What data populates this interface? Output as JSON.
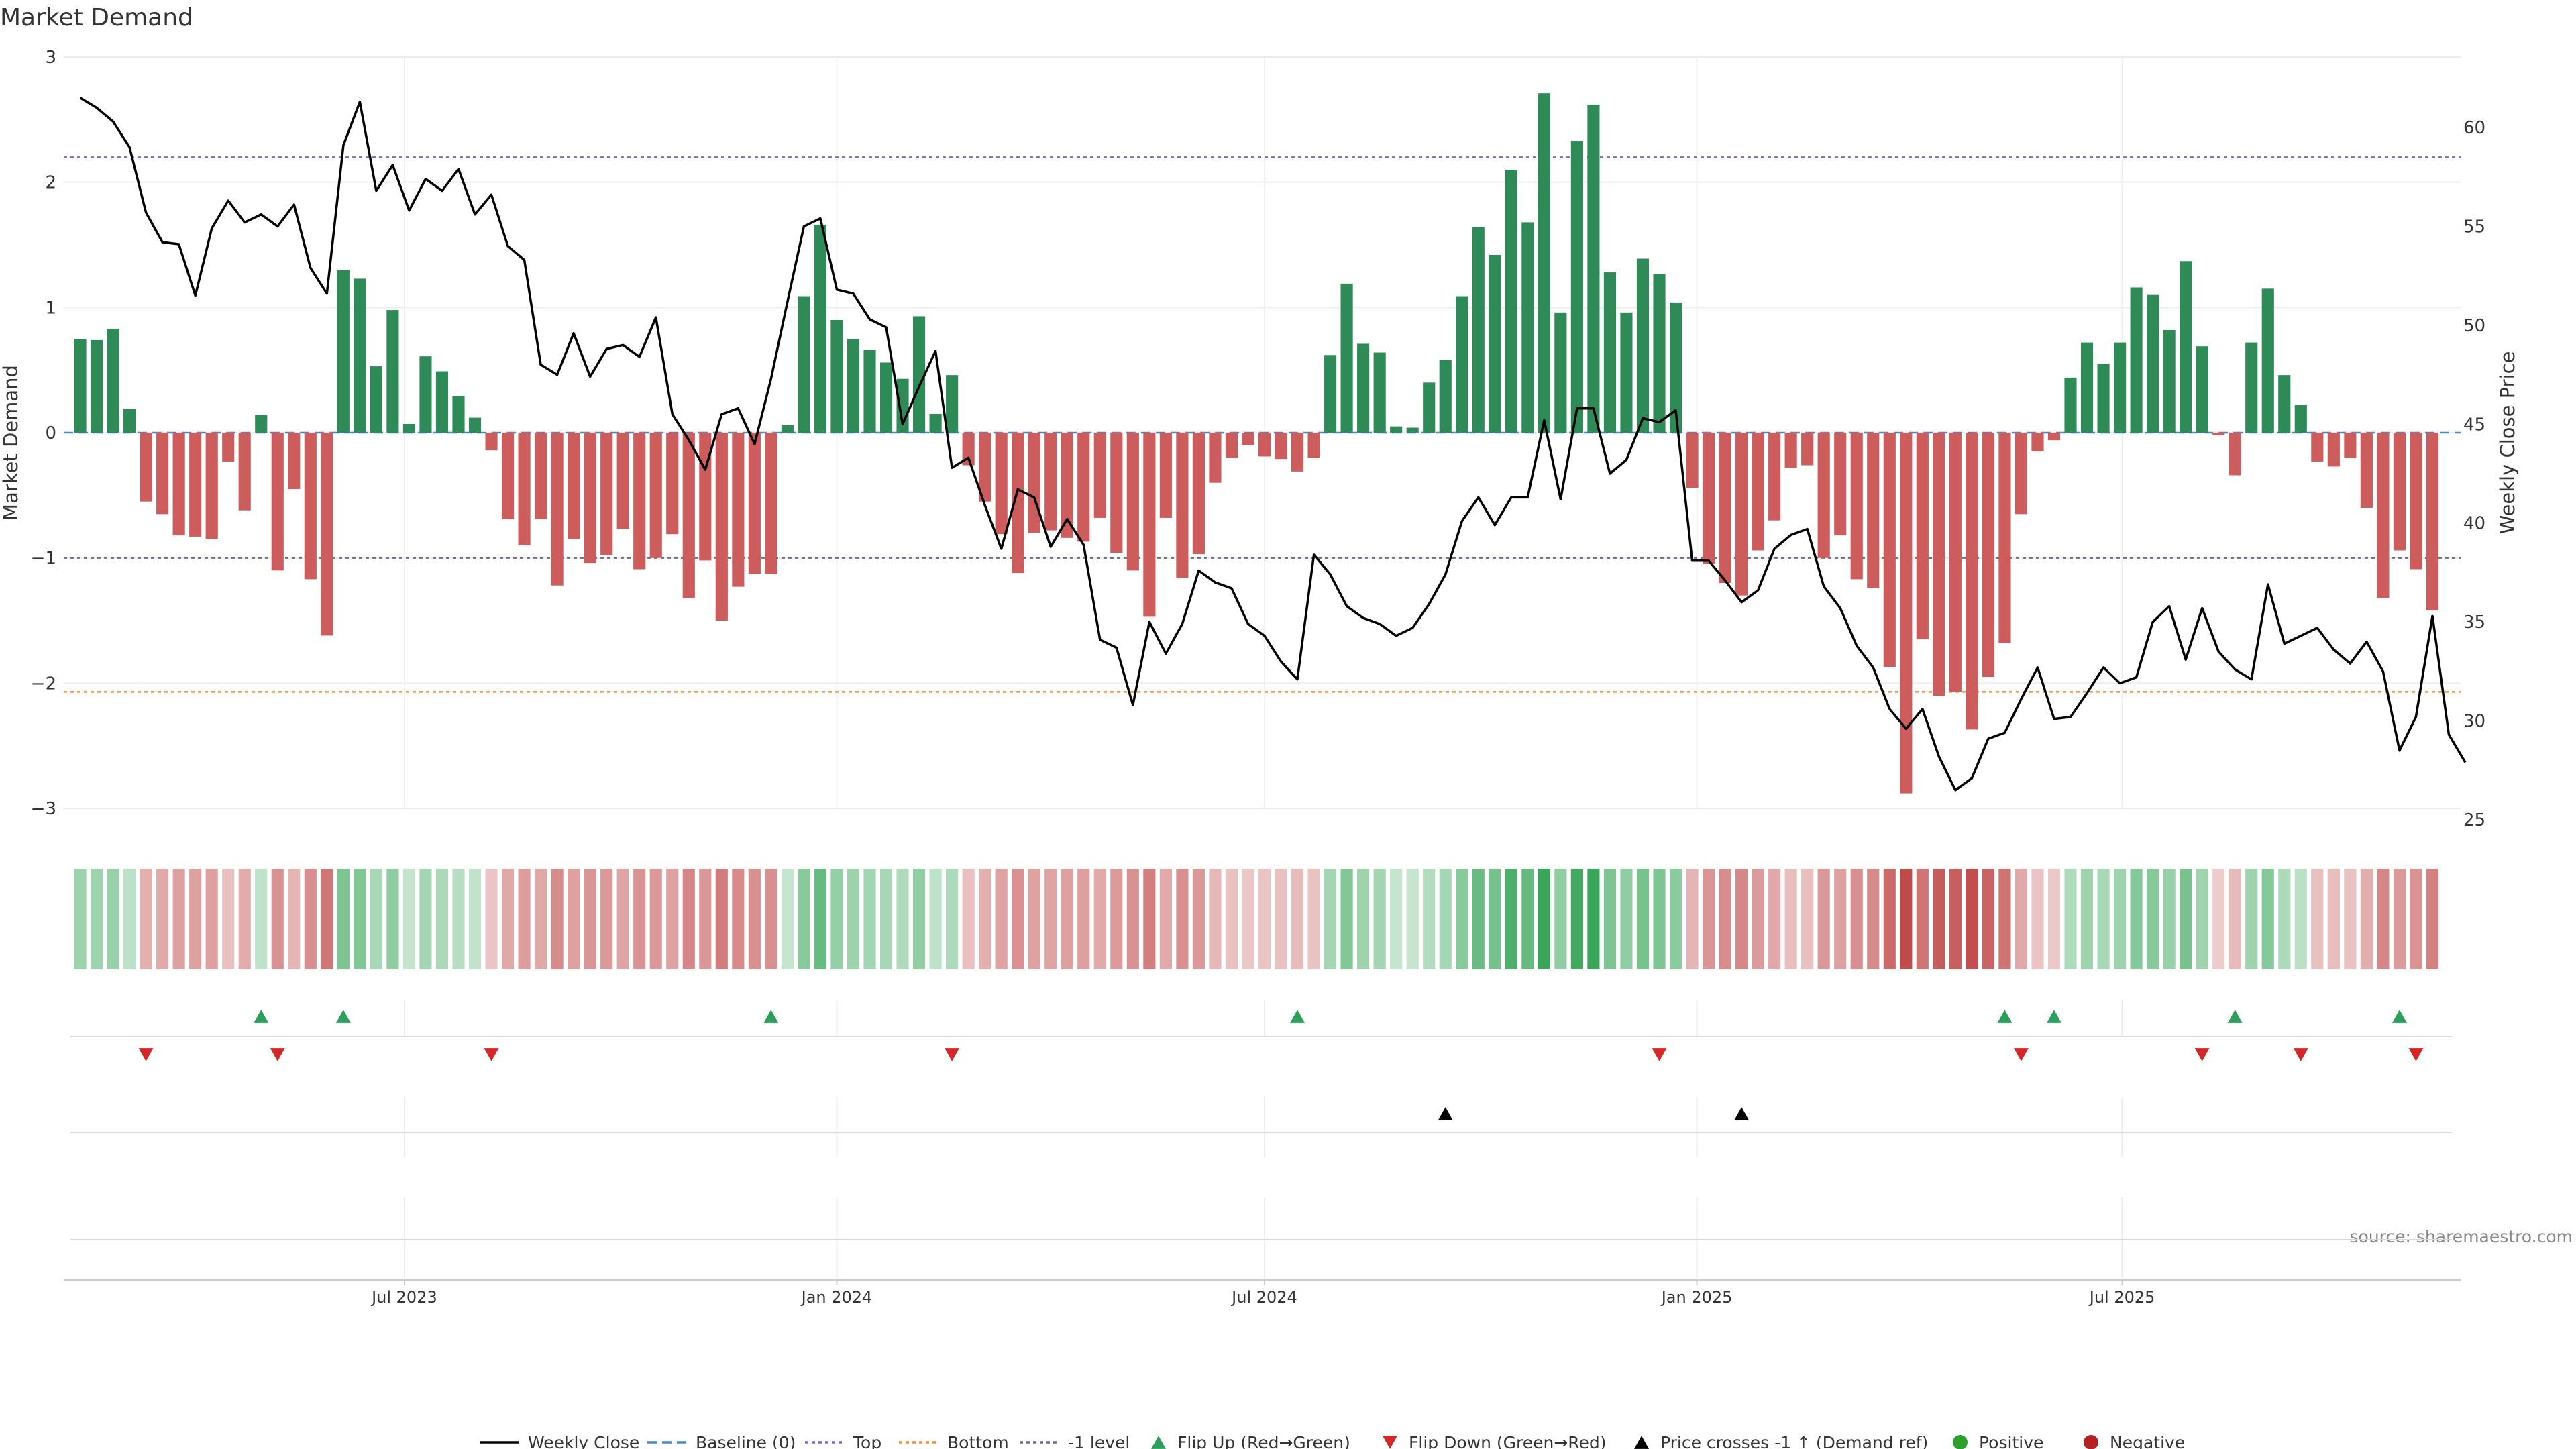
{
  "chart_data": {
    "type": "bar+line",
    "title": "Market Demand",
    "ylabel": "Market Demand",
    "y2label": "Weekly Close Price",
    "ylim": [
      -3,
      3
    ],
    "y2lim": [
      25,
      63
    ],
    "yticks": [
      3,
      2,
      1,
      0,
      -1,
      -2,
      -3
    ],
    "ytick_labels": [
      "3",
      "2",
      "1",
      "0",
      "−1",
      "−2",
      "−3"
    ],
    "y2ticks": [
      60,
      55,
      50,
      45,
      40,
      35,
      30,
      25
    ],
    "y2tick_labels": [
      "60",
      "55",
      "50",
      "45",
      "40",
      "35",
      "30",
      "25"
    ],
    "x_start": "2023-02-13",
    "x_step_days": 7,
    "x_range": [
      "2023-02-06",
      "2025-11-22"
    ],
    "xticks": [
      {
        "date": "2023-07-01",
        "label": "Jul 2023"
      },
      {
        "date": "2024-01-01",
        "label": "Jan 2024"
      },
      {
        "date": "2024-07-01",
        "label": "Jul 2024"
      },
      {
        "date": "2025-01-01",
        "label": "Jan 2025"
      },
      {
        "date": "2025-07-01",
        "label": "Jul 2025"
      }
    ],
    "levels": {
      "top": 2.2,
      "bottom": -2.07,
      "minus_one": -1.0,
      "baseline": 0
    },
    "demand": [
      0.75,
      0.74,
      0.83,
      0.19,
      -0.55,
      -0.65,
      -0.82,
      -0.83,
      -0.85,
      -0.23,
      -0.62,
      0.14,
      -1.1,
      -0.45,
      -1.17,
      -1.62,
      1.3,
      1.23,
      0.53,
      0.98,
      0.07,
      0.61,
      0.49,
      0.29,
      0.12,
      -0.14,
      -0.69,
      -0.9,
      -0.69,
      -1.22,
      -0.85,
      -1.04,
      -0.98,
      -0.77,
      -1.09,
      -1.0,
      -0.81,
      -1.32,
      -1.02,
      -1.5,
      -1.23,
      -1.13,
      -1.13,
      0.06,
      1.09,
      1.66,
      0.9,
      0.75,
      0.66,
      0.56,
      0.43,
      0.93,
      0.15,
      0.46,
      -0.26,
      -0.55,
      -0.81,
      -1.12,
      -0.8,
      -0.78,
      -0.84,
      -0.87,
      -0.68,
      -0.96,
      -1.1,
      -1.47,
      -0.68,
      -1.16,
      -0.97,
      -0.4,
      -0.2,
      -0.1,
      -0.19,
      -0.21,
      -0.31,
      -0.2,
      0.62,
      1.19,
      0.71,
      0.64,
      0.05,
      0.04,
      0.4,
      0.58,
      1.09,
      1.64,
      1.42,
      2.1,
      1.68,
      2.71,
      0.96,
      2.33,
      2.62,
      1.28,
      0.96,
      1.39,
      1.27,
      1.04,
      -0.44,
      -1.05,
      -1.2,
      -1.3,
      -0.94,
      -0.7,
      -0.28,
      -0.26,
      -1.0,
      -0.82,
      -1.17,
      -1.24,
      -1.87,
      -2.88,
      -1.65,
      -2.1,
      -2.07,
      -2.37,
      -1.95,
      -1.68,
      -0.65,
      -0.15,
      -0.06,
      0.44,
      0.72,
      0.55,
      0.72,
      1.16,
      1.1,
      0.82,
      1.37,
      0.69,
      -0.02,
      -0.34,
      0.72,
      1.15,
      0.46,
      0.22,
      -0.23,
      -0.27,
      -0.2,
      -0.6,
      -1.32,
      -0.94,
      -1.09,
      -1.42
    ],
    "close": [
      61.5,
      61.0,
      60.3,
      59.0,
      55.7,
      54.2,
      54.1,
      51.5,
      54.9,
      56.3,
      55.2,
      55.6,
      55.0,
      56.1,
      52.9,
      51.6,
      59.1,
      61.3,
      56.8,
      58.1,
      55.8,
      57.4,
      56.8,
      57.9,
      55.6,
      56.6,
      54.0,
      53.3,
      48.0,
      47.5,
      49.6,
      47.4,
      48.8,
      49.0,
      48.4,
      50.4,
      45.5,
      44.2,
      42.7,
      45.5,
      45.8,
      44.0,
      47.3,
      51.2,
      55.0,
      55.4,
      51.8,
      51.6,
      50.3,
      49.9,
      45.0,
      46.9,
      48.7,
      42.8,
      43.3,
      40.9,
      38.7,
      41.7,
      41.3,
      38.8,
      40.2,
      38.9,
      34.1,
      33.7,
      30.8,
      35.0,
      33.4,
      34.9,
      37.6,
      37.0,
      36.7,
      34.9,
      34.3,
      33.0,
      32.1,
      38.4,
      37.4,
      35.8,
      35.2,
      34.9,
      34.3,
      34.7,
      35.9,
      37.4,
      40.1,
      41.3,
      39.9,
      41.3,
      41.3,
      45.2,
      41.2,
      45.8,
      45.8,
      42.5,
      43.2,
      45.3,
      45.1,
      45.7,
      38.1,
      38.1,
      37.1,
      36.0,
      36.6,
      38.7,
      39.4,
      39.7,
      36.8,
      35.7,
      33.8,
      32.7,
      30.6,
      29.6,
      30.6,
      28.2,
      26.5,
      27.1,
      29.1,
      29.4,
      31.1,
      32.7,
      30.1,
      30.2,
      31.4,
      32.7,
      31.9,
      32.2,
      35.0,
      35.8,
      33.1,
      35.7,
      33.5,
      32.6,
      32.1,
      36.9,
      33.9,
      34.3,
      34.7,
      33.6,
      32.9,
      34.0,
      32.5,
      28.5,
      30.2,
      35.3,
      29.3,
      27.9
    ],
    "flip_up_index": [
      11,
      16,
      42,
      74,
      117,
      120,
      131,
      141
    ],
    "flip_down_index": [
      4,
      12,
      25,
      53,
      96,
      118,
      129,
      135,
      142
    ],
    "price_cross_index": [
      83,
      101
    ],
    "colors": {
      "positive_bar": "#2e8b57",
      "negative_bar": "#cd5c5c",
      "close_line": "#000000",
      "top_line": "#7b68c8",
      "bottom_line": "#e8913a",
      "minus_one_line": "#6a6a8a",
      "baseline": "#4a8ac4",
      "flip_up": "#2ca05a",
      "flip_down": "#d62728",
      "price_cross": "#000000",
      "positive_dot": "#2ca02c",
      "negative_dot": "#b22222"
    },
    "source": "source: sharemaestro.com",
    "legend": {
      "close": "Weekly Close",
      "baseline": "Baseline (0)",
      "top": "Top",
      "bottom": "Bottom",
      "minus_one": "-1 level",
      "flip_up": "Flip Up (Red→Green)",
      "flip_down": "Flip Down (Green→Red)",
      "price_cross": "Price crosses -1 ↑ (Demand ref)",
      "positive": "Positive",
      "negative": "Negative"
    },
    "legend_position": "bottom-center"
  }
}
